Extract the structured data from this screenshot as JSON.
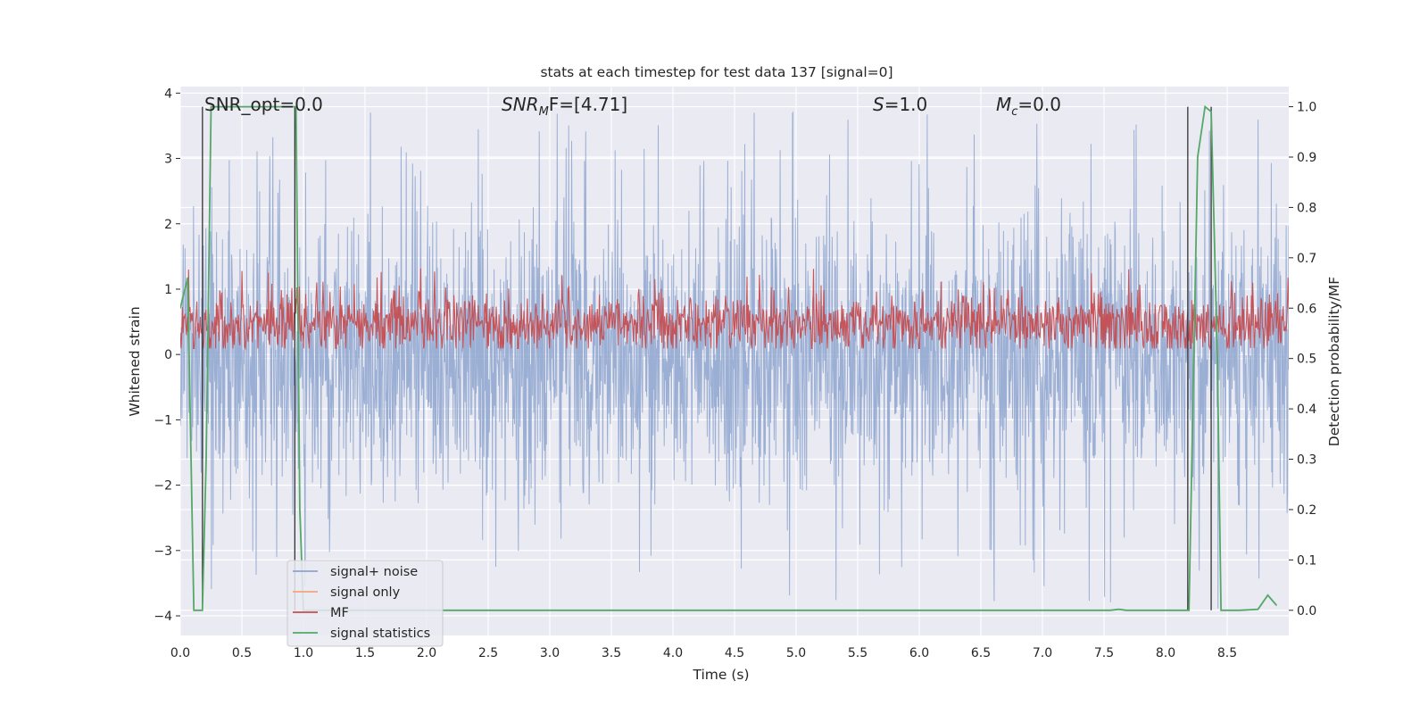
{
  "chart_data": {
    "type": "line",
    "title": "stats at each timestep for test data 137 [signal=0]",
    "xlabel": "Time (s)",
    "ylabel": "Whitened strain",
    "y2label": "Detection probability/MF",
    "xlim": [
      0.0,
      9.0
    ],
    "ylim": [
      -4.3,
      4.1
    ],
    "y2lim": [
      -0.05,
      1.04
    ],
    "xticks": [
      "0.0",
      "0.5",
      "1.0",
      "1.5",
      "2.0",
      "2.5",
      "3.0",
      "3.5",
      "4.0",
      "4.5",
      "5.0",
      "5.5",
      "6.0",
      "6.5",
      "7.0",
      "7.5",
      "8.0",
      "8.5"
    ],
    "yticks": [
      "4",
      "3",
      "2",
      "1",
      "0",
      "−1",
      "−2",
      "−3",
      "−4"
    ],
    "y2ticks": [
      "1.0",
      "0.9",
      "0.8",
      "0.7",
      "0.6",
      "0.5",
      "0.4",
      "0.3",
      "0.2",
      "0.1",
      "0.0"
    ],
    "grid": true,
    "legend_position": "lower-left",
    "annotations": {
      "snr_opt": "SNR_opt=0.0",
      "snr_mf_prefix": "SNR",
      "snr_mf_sub": "M",
      "snr_mf_suffix": "F=[4.71]",
      "s_prefix": "S",
      "s_value": "=1.0",
      "mc_prefix": "M",
      "mc_sub": "c",
      "mc_value": "=0.0"
    },
    "series": [
      {
        "name": "signal+ noise",
        "color": "#8da4cf",
        "kind": "noise",
        "axis": "left",
        "band": [
          -1.8,
          1.7
        ],
        "peak_range": [
          -3.9,
          3.7
        ]
      },
      {
        "name": "signal only",
        "color": "#f2a47f",
        "kind": "flat",
        "axis": "left",
        "values": []
      },
      {
        "name": "MF",
        "color": "#c44e52",
        "kind": "noise",
        "axis": "right",
        "band": [
          0.52,
          0.62
        ],
        "peak_range": [
          0.52,
          0.69
        ]
      },
      {
        "name": "signal statistics",
        "color": "#55a868",
        "kind": "line",
        "axis": "right",
        "x": [
          0.0,
          0.06,
          0.11,
          0.18,
          0.21,
          0.25,
          0.94,
          0.97,
          1.0,
          1.5,
          2.0,
          3.0,
          4.0,
          5.0,
          6.0,
          7.0,
          7.55,
          7.62,
          7.68,
          8.19,
          8.26,
          8.32,
          8.37,
          8.42,
          8.45,
          8.6,
          8.75,
          8.83,
          8.9
        ],
        "y": [
          0.6,
          0.66,
          0.0,
          0.0,
          0.3,
          1.0,
          1.0,
          0.2,
          0.0,
          0.0,
          0.0,
          0.0,
          0.0,
          0.0,
          0.0,
          0.0,
          0.0,
          0.002,
          0.0,
          0.0,
          0.9,
          1.0,
          0.99,
          0.5,
          0.0,
          0.0,
          0.002,
          0.03,
          0.01
        ]
      }
    ],
    "vertical_markers": [
      0.18,
      0.93,
      8.18,
      8.37
    ]
  }
}
